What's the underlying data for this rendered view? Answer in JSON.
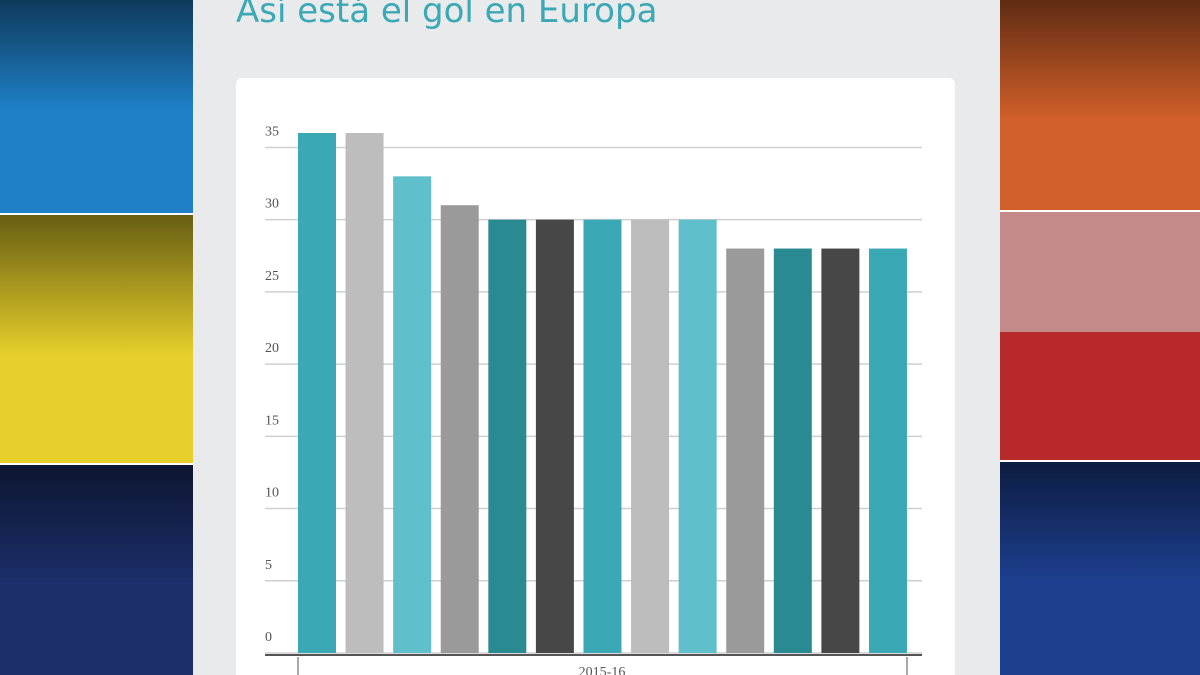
{
  "chart_data": {
    "type": "bar",
    "title": "Así está el gol en Europa",
    "x_label": "2015-16",
    "values": [
      36,
      36,
      33,
      31,
      30,
      30,
      30,
      30,
      30,
      28,
      28,
      28,
      28
    ],
    "colors": [
      "#3aa8b5",
      "#bdbdbd",
      "#5fbfca",
      "#9a9a9a",
      "#2a8a91",
      "#474747",
      "#3aa8b5",
      "#bdbdbd",
      "#5fbfca",
      "#9a9a9a",
      "#2a8a91",
      "#474747",
      "#3aa8b5"
    ],
    "ylim": [
      0,
      36
    ],
    "yticks": [
      0,
      5,
      10,
      15,
      20,
      25,
      30,
      35
    ],
    "grid": true
  }
}
